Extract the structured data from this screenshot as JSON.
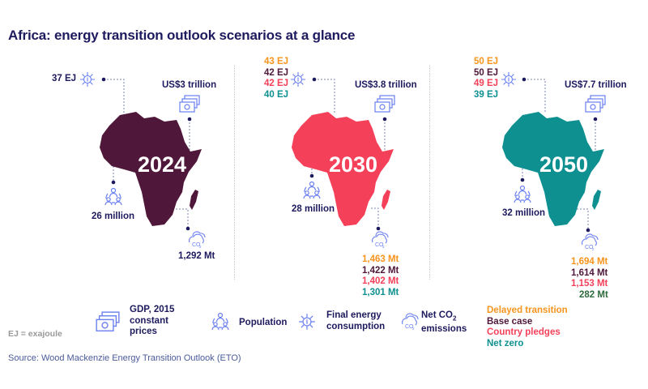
{
  "title": "Africa: energy transition outlook scenarios at a glance",
  "colors": {
    "navy": "#1e1a5e",
    "icon": "#6a7ff0",
    "delayed": "#f7941d",
    "base": "#4f1739",
    "pledges": "#f5405a",
    "net_zero": "#0e9090",
    "map_2024": "#4f1739",
    "map_2030": "#f5405a",
    "map_2050": "#0e9090"
  },
  "panels": [
    {
      "year": "2024",
      "energy": [
        "37 EJ"
      ],
      "gdp": "US$3 trillion",
      "population": "26 million",
      "emissions": [
        "1,292 Mt"
      ]
    },
    {
      "year": "2030",
      "energy": [
        "43 EJ",
        "42 EJ",
        "42 EJ",
        "40 EJ"
      ],
      "gdp": "US$3.8 trillion",
      "population": "28 million",
      "emissions": [
        "1,463 Mt",
        "1,422 Mt",
        "1,402 Mt",
        "1,301 Mt"
      ]
    },
    {
      "year": "2050",
      "energy": [
        "50 EJ",
        "50 EJ",
        "49 EJ",
        "39 EJ"
      ],
      "gdp": "US$7.7 trillion",
      "population": "32 million",
      "emissions": [
        "1,694 Mt",
        "1,614 Mt",
        "1,153 Mt",
        "282 Mt"
      ]
    }
  ],
  "legend": {
    "gdp": [
      "GDP, 2015",
      "constant",
      "prices"
    ],
    "population": "Population",
    "energy": [
      "Final energy",
      "consumption"
    ],
    "emissions": [
      "Net CO",
      "2",
      "emissions"
    ],
    "scenarios": [
      "Delayed transition",
      "Base case",
      "Country pledges",
      "Net zero"
    ],
    "icons": [
      "money-icon",
      "population-icon",
      "sun-energy-icon",
      "co2-cloud-icon"
    ]
  },
  "ej_note": "EJ = exajoule",
  "source": "Source: Wood Mackenzie Energy Transition Outlook (ETO)"
}
